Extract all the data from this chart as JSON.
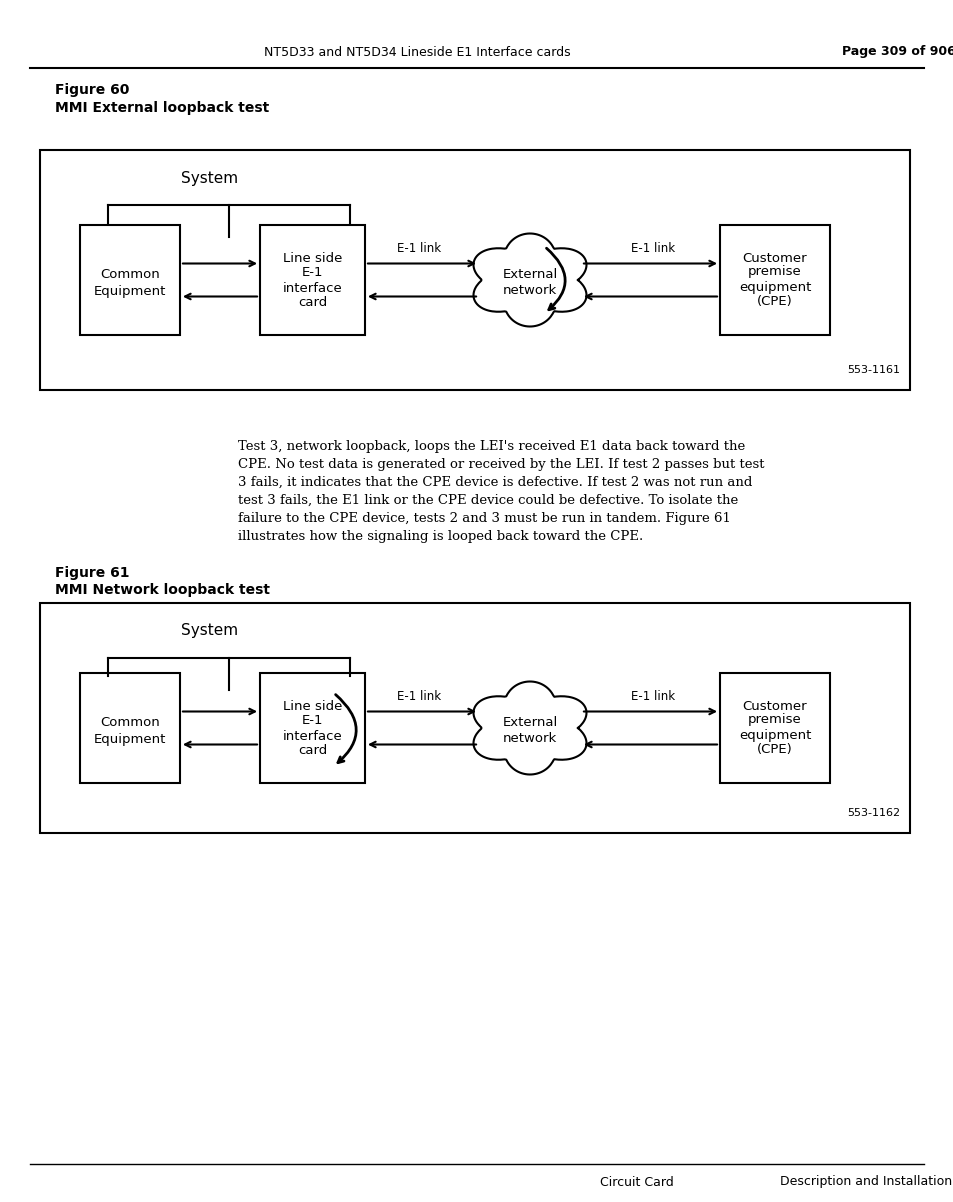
{
  "page_header_left": "NT5D33 and NT5D34 Lineside E1 Interface cards",
  "page_header_right": "Page 309 of 906",
  "fig60_label": "Figure 60",
  "fig60_title": "MMI External loopback test",
  "fig61_label": "Figure 61",
  "fig61_title": "MMI Network loopback test",
  "body_text": "Test 3, network loopback, loops the LEI's received E1 data back toward the CPE. No test data is generated or received by the LEI. If test 2 passes but test 3 fails, it indicates that the CPE device is defective. If test 2 was not run and test 3 fails, the E1 link or the CPE device could be defective. To isolate the failure to the CPE device, tests 2 and 3 must be run in tandem. Figure 61 illustrates how the signaling is looped back toward the CPE.",
  "footer_left": "Circuit Card",
  "footer_right": "Description and Installation",
  "fig60_code": "553-1161",
  "fig61_code": "553-1162",
  "bg_color": "#ffffff",
  "box_color": "#000000",
  "text_color": "#000000"
}
